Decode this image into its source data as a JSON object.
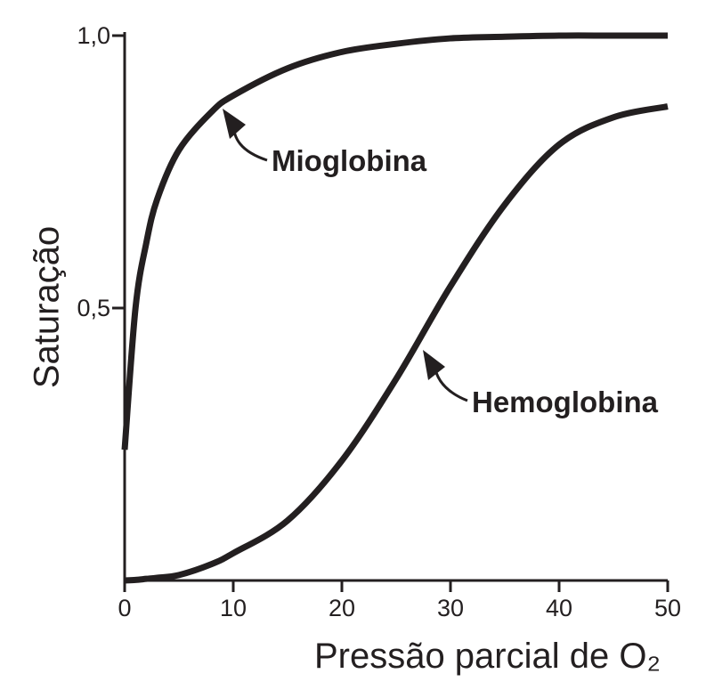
{
  "chart_data": {
    "type": "line",
    "x_label": "Pressão parcial de O₂",
    "y_label": "Saturação",
    "x": [
      0,
      1,
      2,
      3,
      5,
      8,
      10,
      15,
      20,
      25,
      30,
      35,
      40,
      45,
      50
    ],
    "series": [
      {
        "name": "Mioglobina",
        "color": "#231f20",
        "values": [
          0.24,
          0.5,
          0.62,
          0.7,
          0.79,
          0.86,
          0.89,
          0.94,
          0.97,
          0.985,
          0.995,
          0.998,
          1.0,
          1.0,
          1.0
        ]
      },
      {
        "name": "Hemoglobina",
        "color": "#231f20",
        "values": [
          0,
          0.001,
          0.003,
          0.005,
          0.01,
          0.03,
          0.05,
          0.11,
          0.22,
          0.37,
          0.54,
          0.69,
          0.8,
          0.85,
          0.87
        ]
      }
    ],
    "xlim": [
      0,
      50
    ],
    "xticks": [
      0,
      10,
      20,
      30,
      40,
      50
    ],
    "ylim": [
      0,
      1
    ],
    "yticks": [
      {
        "value": 0.5,
        "label": "0,5"
      },
      {
        "value": 1,
        "label": "1,0"
      }
    ],
    "grid": false
  }
}
